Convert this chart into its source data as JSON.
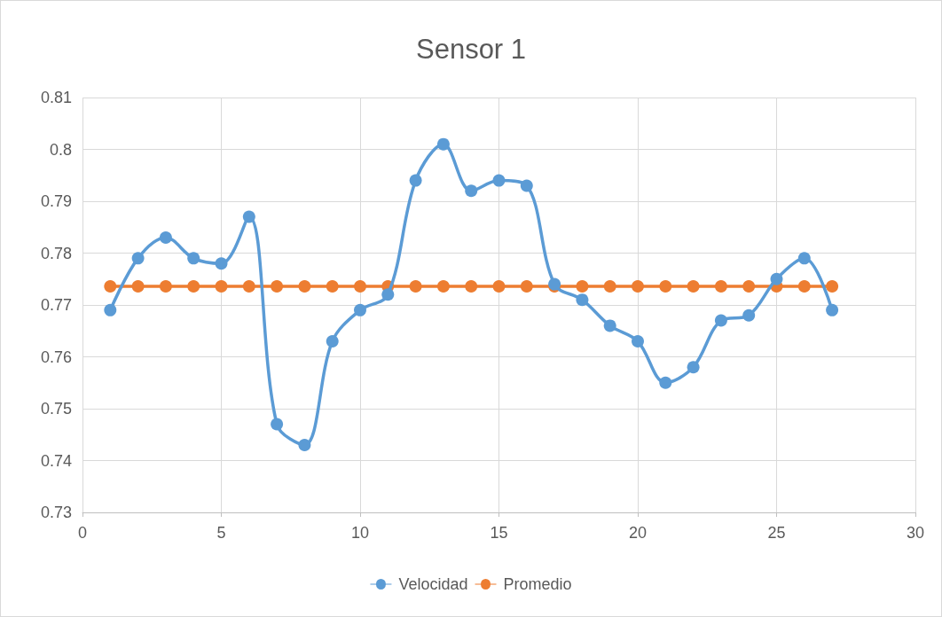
{
  "chart_data": {
    "type": "line",
    "title": "Sensor 1",
    "x": [
      1,
      2,
      3,
      4,
      5,
      6,
      7,
      8,
      9,
      10,
      11,
      12,
      13,
      14,
      15,
      16,
      17,
      18,
      19,
      20,
      21,
      22,
      23,
      24,
      25,
      26,
      27
    ],
    "series": [
      {
        "name": "Velocidad",
        "color": "#5b9bd5",
        "values": [
          0.769,
          0.779,
          0.783,
          0.779,
          0.778,
          0.787,
          0.747,
          0.743,
          0.763,
          0.769,
          0.772,
          0.794,
          0.801,
          0.792,
          0.794,
          0.793,
          0.774,
          0.771,
          0.766,
          0.763,
          0.755,
          0.758,
          0.767,
          0.768,
          0.775,
          0.779,
          0.769
        ]
      },
      {
        "name": "Promedio",
        "color": "#ed7d31",
        "values": [
          0.7736,
          0.7736,
          0.7736,
          0.7736,
          0.7736,
          0.7736,
          0.7736,
          0.7736,
          0.7736,
          0.7736,
          0.7736,
          0.7736,
          0.7736,
          0.7736,
          0.7736,
          0.7736,
          0.7736,
          0.7736,
          0.7736,
          0.7736,
          0.7736,
          0.7736,
          0.7736,
          0.7736,
          0.7736,
          0.7736,
          0.7736
        ]
      }
    ],
    "xlim": [
      0,
      30
    ],
    "xticks": [
      0,
      5,
      10,
      15,
      20,
      25,
      30
    ],
    "ylim": [
      0.73,
      0.81
    ],
    "yticks": [
      0.73,
      0.74,
      0.75,
      0.76,
      0.77,
      0.78,
      0.79,
      0.8,
      0.81
    ],
    "grid": true,
    "legend": "bottom",
    "marker": "circle",
    "line_style": "solid"
  }
}
